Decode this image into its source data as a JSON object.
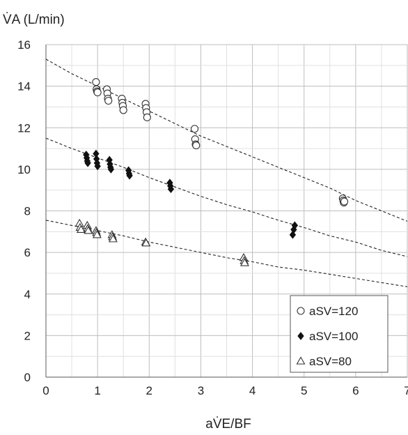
{
  "chart_data": {
    "type": "scatter",
    "ylabel": "V̇A (L/min)",
    "xlabel": "aV̇E/BF",
    "xlim": [
      0,
      7
    ],
    "ylim": [
      0,
      16
    ],
    "x_ticks": [
      0,
      1,
      2,
      3,
      4,
      5,
      6,
      7
    ],
    "y_ticks": [
      0,
      2,
      4,
      6,
      8,
      10,
      12,
      14,
      16
    ],
    "grid": true,
    "legend_position": "bottom-right",
    "series": [
      {
        "name": "aSV=120",
        "marker": "circle-open",
        "points": [
          [
            0.97,
            14.2
          ],
          [
            0.98,
            13.85
          ],
          [
            0.99,
            13.75
          ],
          [
            1.0,
            13.7
          ],
          [
            1.18,
            13.85
          ],
          [
            1.19,
            13.65
          ],
          [
            1.2,
            13.4
          ],
          [
            1.21,
            13.3
          ],
          [
            1.47,
            13.4
          ],
          [
            1.48,
            13.2
          ],
          [
            1.49,
            13.05
          ],
          [
            1.5,
            12.85
          ],
          [
            1.93,
            13.15
          ],
          [
            1.94,
            12.95
          ],
          [
            1.95,
            12.75
          ],
          [
            1.96,
            12.5
          ],
          [
            2.88,
            11.95
          ],
          [
            2.89,
            11.45
          ],
          [
            2.9,
            11.2
          ],
          [
            2.91,
            11.15
          ],
          [
            5.75,
            8.6
          ],
          [
            5.76,
            8.5
          ],
          [
            5.77,
            8.4
          ],
          [
            5.78,
            8.45
          ]
        ],
        "trend": [
          [
            0,
            15.3
          ],
          [
            0.5,
            14.6
          ],
          [
            1,
            14.0
          ],
          [
            1.5,
            13.4
          ],
          [
            2,
            12.8
          ],
          [
            2.5,
            12.2
          ],
          [
            3,
            11.6
          ],
          [
            3.5,
            11.1
          ],
          [
            4,
            10.6
          ],
          [
            4.5,
            10.1
          ],
          [
            5,
            9.6
          ],
          [
            5.5,
            9.1
          ],
          [
            6,
            8.5
          ],
          [
            6.5,
            8.0
          ],
          [
            7,
            7.5
          ]
        ]
      },
      {
        "name": "aSV=100",
        "marker": "diamond-filled",
        "points": [
          [
            0.78,
            10.7
          ],
          [
            0.79,
            10.55
          ],
          [
            0.8,
            10.4
          ],
          [
            0.81,
            10.3
          ],
          [
            0.97,
            10.75
          ],
          [
            0.98,
            10.5
          ],
          [
            0.99,
            10.3
          ],
          [
            1.0,
            10.15
          ],
          [
            1.23,
            10.45
          ],
          [
            1.24,
            10.25
          ],
          [
            1.25,
            10.1
          ],
          [
            1.26,
            10.0
          ],
          [
            1.6,
            9.95
          ],
          [
            1.61,
            9.8
          ],
          [
            1.62,
            9.7
          ],
          [
            2.4,
            9.35
          ],
          [
            2.41,
            9.2
          ],
          [
            2.42,
            9.05
          ],
          [
            4.78,
            6.85
          ],
          [
            4.8,
            7.1
          ],
          [
            4.82,
            7.3
          ]
        ],
        "trend": [
          [
            0,
            11.5
          ],
          [
            0.5,
            11.0
          ],
          [
            1,
            10.55
          ],
          [
            1.5,
            10.1
          ],
          [
            2,
            9.6
          ],
          [
            2.5,
            9.15
          ],
          [
            3,
            8.7
          ],
          [
            3.5,
            8.3
          ],
          [
            4,
            7.95
          ],
          [
            4.5,
            7.55
          ],
          [
            5,
            7.2
          ],
          [
            5.5,
            6.8
          ],
          [
            6,
            6.5
          ],
          [
            6.5,
            6.1
          ],
          [
            7,
            5.8
          ]
        ]
      },
      {
        "name": "aSV=80",
        "marker": "triangle-open",
        "points": [
          [
            0.65,
            7.4
          ],
          [
            0.66,
            7.2
          ],
          [
            0.68,
            7.1
          ],
          [
            0.8,
            7.3
          ],
          [
            0.81,
            7.15
          ],
          [
            0.82,
            7.05
          ],
          [
            0.97,
            7.05
          ],
          [
            0.98,
            6.95
          ],
          [
            0.99,
            6.85
          ],
          [
            1.28,
            6.85
          ],
          [
            1.29,
            6.75
          ],
          [
            1.3,
            6.65
          ],
          [
            1.93,
            6.5
          ],
          [
            1.94,
            6.45
          ],
          [
            3.83,
            5.75
          ],
          [
            3.84,
            5.6
          ],
          [
            3.85,
            5.5
          ]
        ],
        "trend": [
          [
            0,
            7.55
          ],
          [
            0.5,
            7.3
          ],
          [
            1,
            7.05
          ],
          [
            1.5,
            6.8
          ],
          [
            2,
            6.5
          ],
          [
            2.5,
            6.25
          ],
          [
            3,
            6.0
          ],
          [
            3.5,
            5.75
          ],
          [
            4,
            5.55
          ],
          [
            4.5,
            5.3
          ],
          [
            5,
            5.15
          ],
          [
            5.5,
            4.95
          ],
          [
            6,
            4.75
          ],
          [
            6.5,
            4.55
          ],
          [
            7,
            4.35
          ]
        ]
      }
    ]
  }
}
